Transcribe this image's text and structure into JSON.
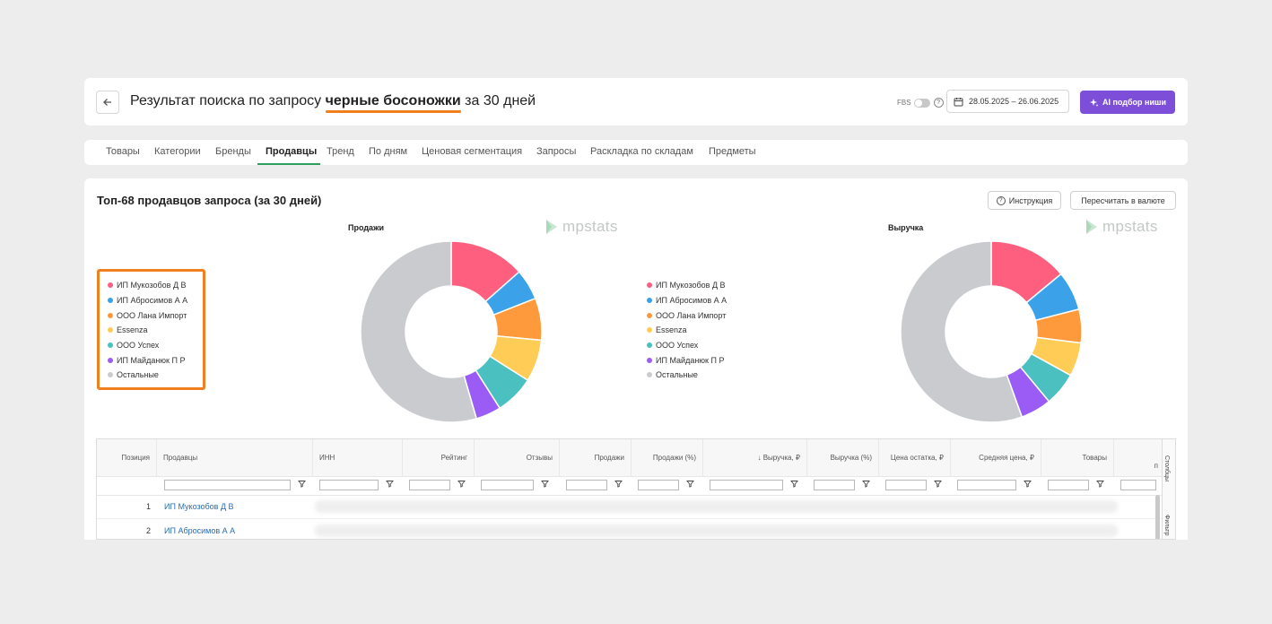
{
  "header": {
    "title_prefix": "Результат поиска по запросу ",
    "query": "черные босоножки",
    "title_suffix": " за 30 дней",
    "fbs_label": "FBS",
    "date_range": "28.05.2025 – 26.06.2025",
    "ai_button": "AI подбор ниши"
  },
  "tabs": [
    "Товары",
    "Категории",
    "Бренды",
    "Продавцы",
    "Тренд",
    "По дням",
    "Ценовая сегментация",
    "Запросы",
    "Раскладка по складам",
    "Предметы"
  ],
  "active_tab": "Продавцы",
  "section": {
    "title": "Топ-68 продавцов запроса (за 30 дней)",
    "instruction_button": "Инструкция",
    "currency_button": "Пересчитать в валюте"
  },
  "brand_watermark": "mpstats",
  "legend": [
    {
      "label": "ИП Мукозобов Д В",
      "color": "#ff5f7e"
    },
    {
      "label": "ИП Абросимов А А",
      "color": "#3ba2ea"
    },
    {
      "label": "ООО Лана Импорт",
      "color": "#ff9a3c"
    },
    {
      "label": "Essenza",
      "color": "#ffcd56"
    },
    {
      "label": "ООО Успех",
      "color": "#4bc0c0"
    },
    {
      "label": "ИП Майданюк П Р",
      "color": "#9b5cf6"
    },
    {
      "label": "Остальные",
      "color": "#c9cbcf"
    }
  ],
  "chart_data": [
    {
      "type": "pie",
      "title": "Продажи",
      "categories": [
        "ИП Мукозобов Д В",
        "ИП Абросимов А А",
        "ООО Лана Импорт",
        "Essenza",
        "ООО Успех",
        "ИП Майданюк П Р",
        "Остальные"
      ],
      "values": [
        13.5,
        5.5,
        7.5,
        7.5,
        7.0,
        4.5,
        54.5
      ],
      "colors": [
        "#ff5f7e",
        "#3ba2ea",
        "#ff9a3c",
        "#ffcd56",
        "#4bc0c0",
        "#9b5cf6",
        "#c9cbcf"
      ],
      "legend": "left",
      "unit": "%"
    },
    {
      "type": "pie",
      "title": "Выручка",
      "categories": [
        "ИП Мукозобов Д В",
        "ИП Абросимов А А",
        "ООО Лана Импорт",
        "Essenza",
        "ООО Успех",
        "ИП Майданюк П Р",
        "Остальные"
      ],
      "values": [
        14.0,
        7.0,
        6.0,
        6.0,
        6.0,
        5.5,
        55.5
      ],
      "colors": [
        "#ff5f7e",
        "#3ba2ea",
        "#ff9a3c",
        "#ffcd56",
        "#4bc0c0",
        "#9b5cf6",
        "#c9cbcf"
      ],
      "legend": "left",
      "unit": "%"
    }
  ],
  "table": {
    "columns": [
      "Позиция",
      "Продавцы",
      "ИНН",
      "Рейтинг",
      "Отзывы",
      "Продажи",
      "Продажи (%)",
      "↓ Выручка, ₽",
      "Выручка (%)",
      "Цена остатка, ₽",
      "Средняя цена, ₽",
      "Товары",
      "п"
    ],
    "rows": [
      {
        "position": "1",
        "seller": "ИП Мукозобов Д В"
      },
      {
        "position": "2",
        "seller": "ИП Абросимов А А"
      }
    ],
    "side_panel": [
      "Столбцы",
      "Фильтр"
    ]
  }
}
